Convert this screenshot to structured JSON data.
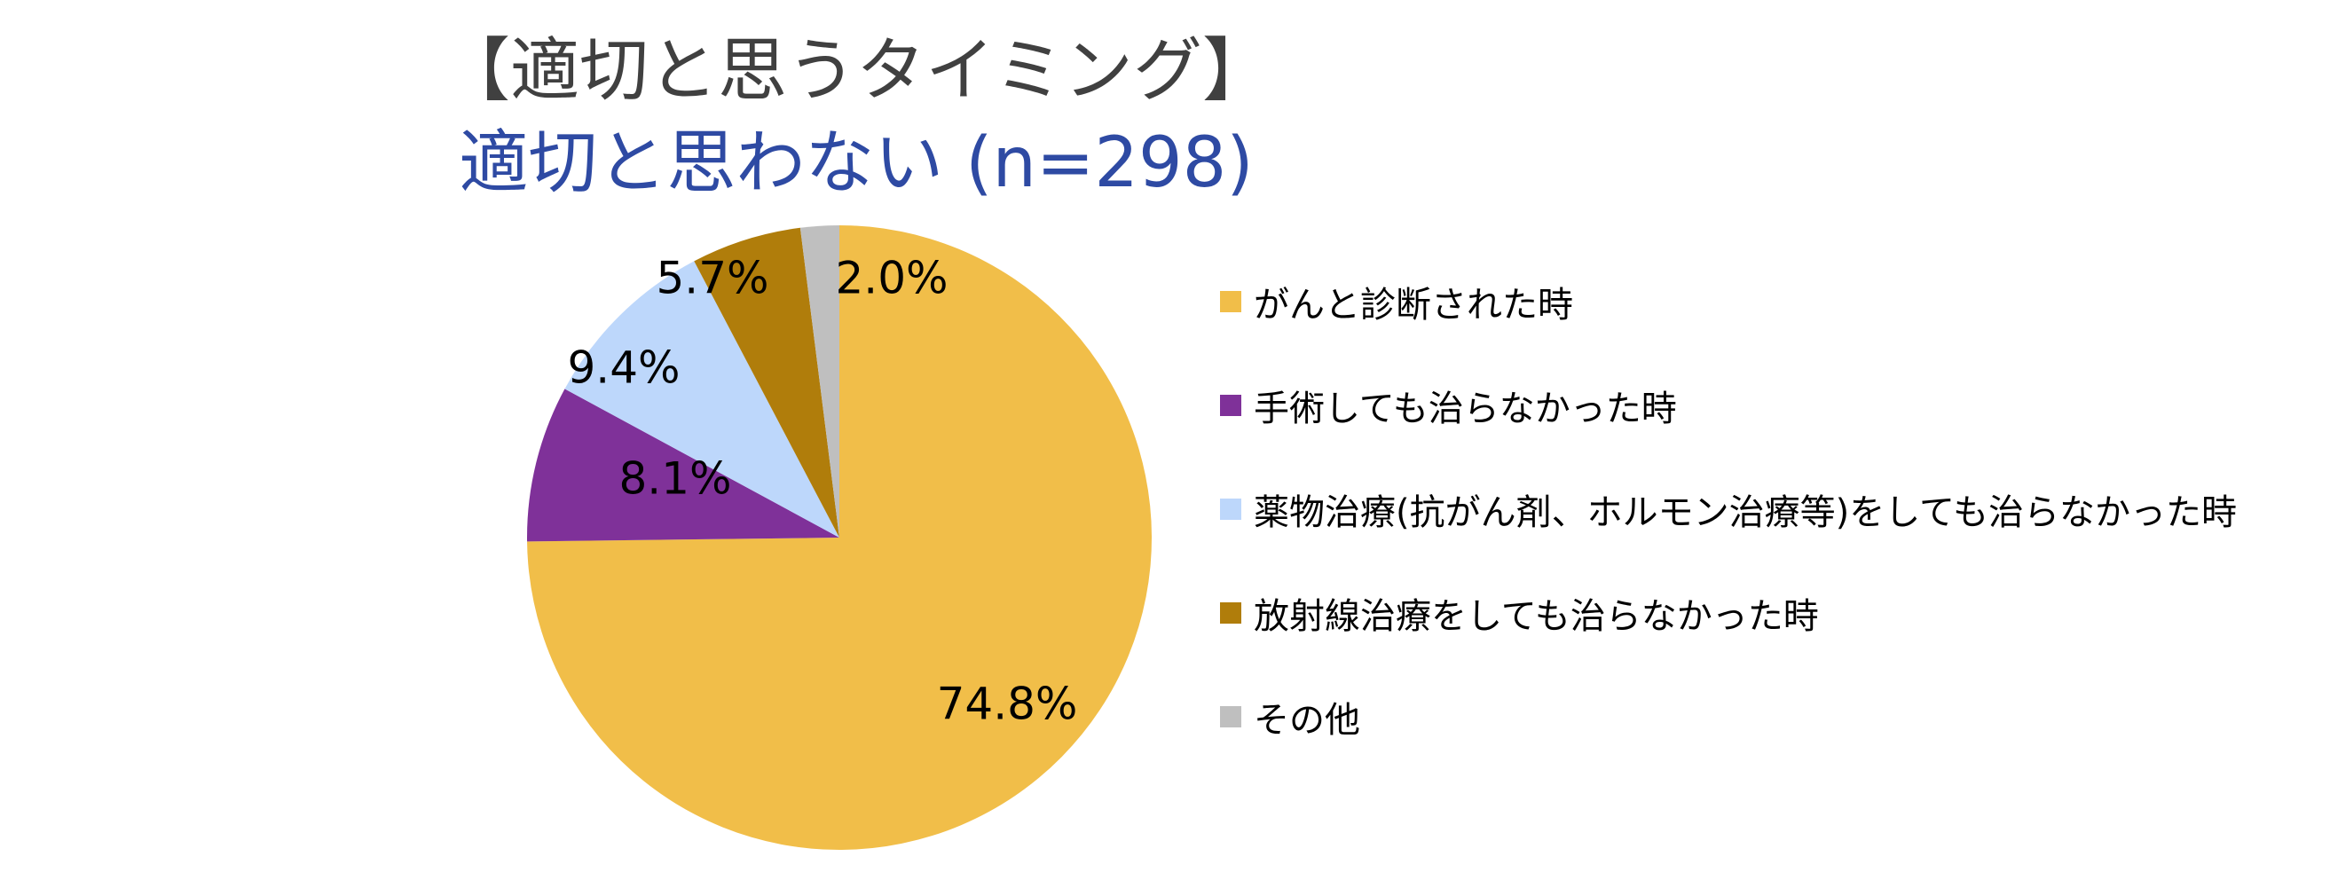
{
  "chart_data": {
    "type": "pie",
    "title": "【適切と思うタイミング】",
    "subtitle": "適切と思わない (n=298)",
    "categories": [
      "がんと診断された時",
      "手術しても治らなかった時",
      "薬物治療(抗がん剤、ホルモン治療等)をしても治らなかった時",
      "放射線治療をしても治らなかった時",
      "その他"
    ],
    "values": [
      74.8,
      8.1,
      9.4,
      5.7,
      2.0
    ],
    "value_labels": [
      "74.8%",
      "8.1%",
      "9.4%",
      "5.7%",
      "2.0%"
    ],
    "colors": [
      "#f1be49",
      "#7f3199",
      "#bdd7fb",
      "#b07d0b",
      "#bfbfbf"
    ],
    "start_angle_deg": 0,
    "direction": "clockwise",
    "legend_position": "right"
  }
}
